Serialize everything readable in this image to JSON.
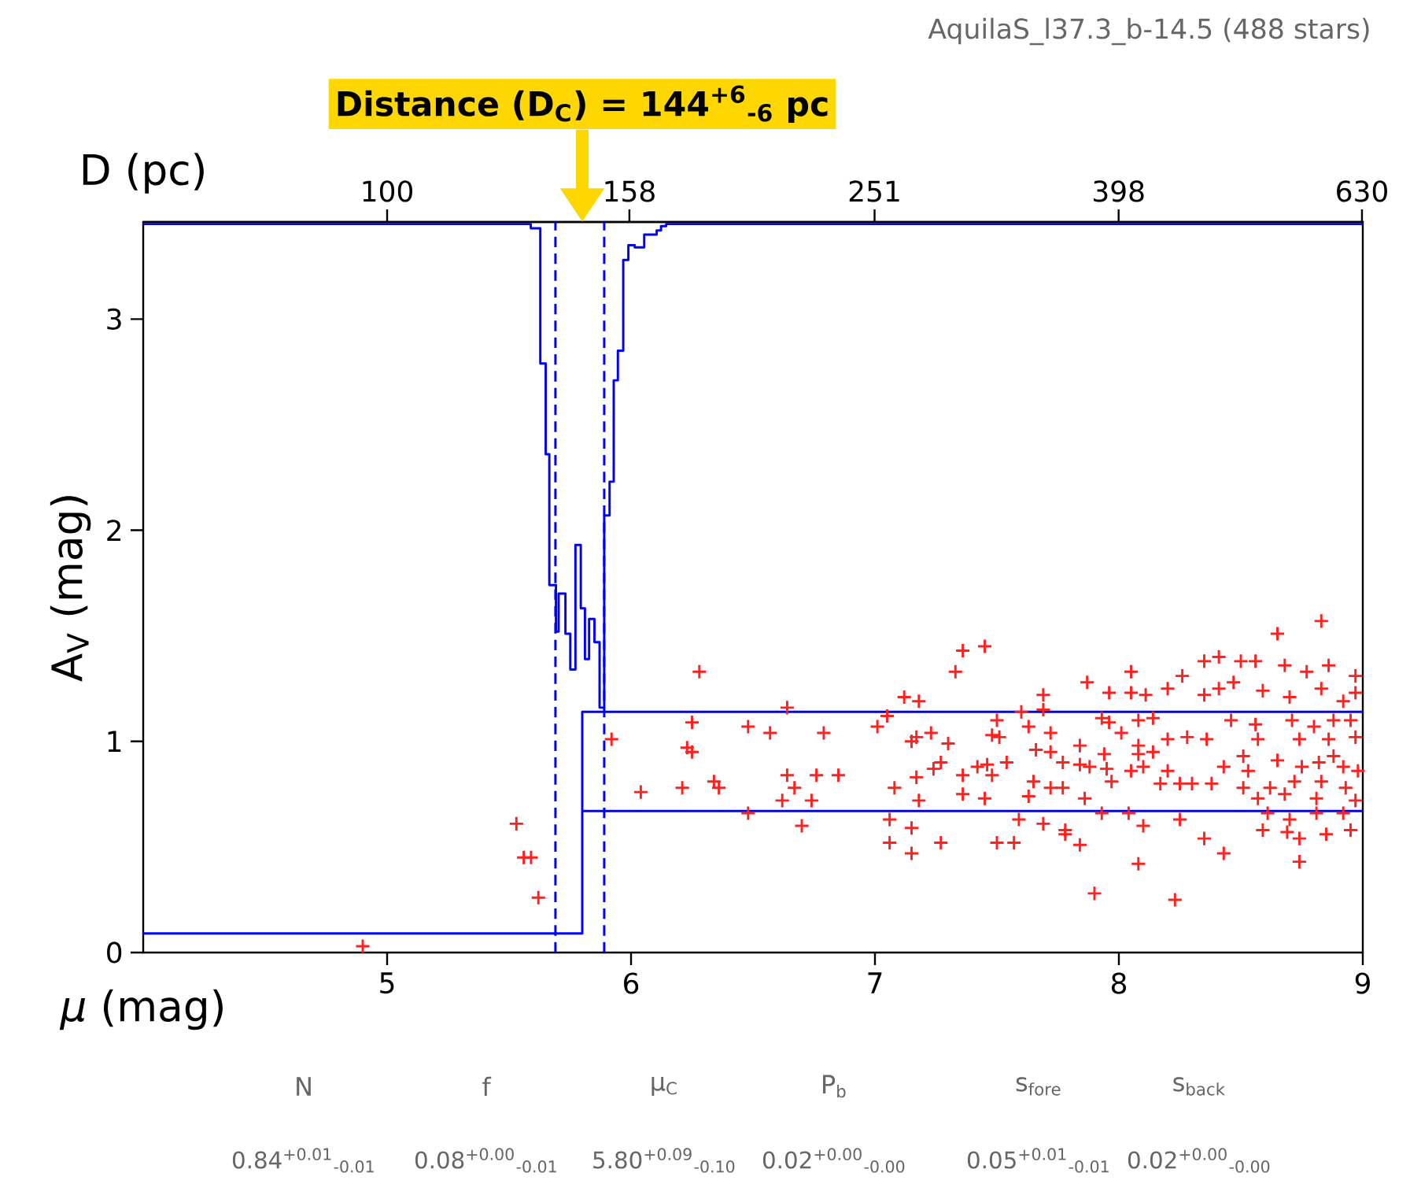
{
  "chart_data": {
    "type": "scatter",
    "title": "AquilaS_l37.3_b-14.5 (488 stars)",
    "xlabel": "*μ* (mag)",
    "ylabel": "A$_{V}$ (mag)",
    "x2label": "D (pc)",
    "xlim": [
      4,
      9
    ],
    "xticks": [
      5,
      6,
      7,
      8,
      9
    ],
    "ylim": [
      0,
      3.46
    ],
    "yticks": [
      0,
      1,
      2,
      3
    ],
    "x2lim": [
      63.1,
      631
    ],
    "x2ticks": [
      100,
      158,
      251,
      398,
      630
    ],
    "log": "x2",
    "marker": "cross",
    "grid": false,
    "series": [
      {
        "color": "#ff2020",
        "x": [
          4.9,
          5.53,
          5.56,
          5.59,
          5.62,
          5.92,
          6.04,
          6.28,
          6.25,
          6.25,
          6.23,
          6.21,
          6.34,
          6.36,
          6.48,
          6.48,
          6.57,
          6.64,
          6.64,
          6.62,
          6.67,
          6.7,
          6.76,
          6.79,
          6.85,
          6.74,
          7.01,
          7.05,
          7.36,
          7.45,
          7.33,
          7.12,
          7.18,
          7.06,
          7.15,
          7.06,
          7.15,
          7.27,
          7.5,
          7.57,
          7.08,
          7.18,
          7.17,
          7.36,
          7.36,
          7.24,
          7.27,
          7.15,
          7.17,
          7.23,
          7.3,
          7.42,
          7.46,
          7.54,
          7.48,
          7.45,
          7.48,
          7.51,
          7.5,
          7.6,
          7.69,
          7.69,
          7.63,
          7.72,
          7.66,
          7.72,
          7.77,
          7.84,
          7.72,
          7.77,
          7.65,
          7.63,
          7.59,
          7.69,
          7.78,
          7.78,
          7.84,
          7.9,
          7.87,
          7.96,
          8.05,
          8.05,
          8.11,
          8.2,
          8.26,
          7.93,
          7.96,
          8.01,
          8.08,
          8.14,
          8.2,
          8.28,
          8.36,
          8.08,
          8.08,
          8.14,
          7.84,
          7.88,
          7.94,
          7.95,
          7.97,
          8.05,
          8.1,
          8.2,
          7.86,
          7.93,
          8.04,
          8.08,
          8.1,
          8.23,
          8.17,
          8.25,
          8.3,
          8.38,
          8.25,
          8.35,
          8.43,
          8.35,
          8.41,
          8.5,
          8.56,
          8.68,
          8.77,
          8.86,
          8.65,
          8.83,
          8.97,
          8.41,
          8.47,
          8.59,
          8.7,
          8.83,
          8.92,
          8.97,
          8.35,
          8.46,
          8.56,
          8.71,
          8.8,
          8.88,
          8.95,
          8.57,
          8.74,
          8.86,
          8.97,
          8.43,
          8.53,
          8.65,
          8.75,
          8.82,
          8.92,
          8.98,
          8.51,
          8.62,
          8.72,
          8.83,
          8.93,
          8.57,
          8.68,
          8.81,
          8.97,
          8.61,
          8.7,
          8.81,
          8.92,
          8.59,
          8.69,
          8.85,
          8.95,
          8.74,
          8.74,
          8.51,
          8.88
        ],
        "values": [
          0.03,
          0.61,
          0.45,
          0.45,
          0.26,
          1.01,
          0.76,
          1.33,
          1.09,
          0.95,
          0.97,
          0.78,
          0.81,
          0.78,
          0.66,
          1.07,
          1.04,
          1.16,
          0.84,
          0.72,
          0.78,
          0.6,
          0.84,
          1.04,
          0.84,
          0.72,
          1.07,
          1.12,
          1.43,
          1.45,
          1.33,
          1.21,
          1.19,
          0.63,
          0.59,
          0.52,
          0.47,
          0.52,
          0.52,
          0.52,
          0.78,
          0.72,
          0.83,
          0.84,
          0.75,
          0.87,
          0.9,
          1.0,
          1.02,
          1.04,
          0.99,
          0.88,
          0.89,
          0.9,
          0.84,
          0.73,
          1.03,
          1.02,
          1.1,
          1.14,
          1.22,
          1.15,
          1.07,
          1.04,
          0.96,
          0.95,
          0.9,
          0.98,
          0.78,
          0.78,
          0.81,
          0.74,
          0.63,
          0.61,
          0.58,
          0.56,
          0.51,
          0.28,
          1.28,
          1.23,
          1.33,
          1.23,
          1.22,
          1.25,
          1.31,
          1.11,
          1.09,
          1.04,
          1.1,
          1.11,
          1.01,
          1.02,
          1.01,
          0.98,
          0.94,
          0.95,
          0.89,
          0.88,
          0.94,
          0.87,
          0.81,
          0.86,
          0.88,
          0.86,
          0.73,
          0.66,
          0.66,
          0.42,
          0.6,
          0.25,
          0.8,
          0.8,
          0.8,
          0.8,
          0.63,
          0.54,
          0.47,
          1.38,
          1.4,
          1.38,
          1.38,
          1.36,
          1.33,
          1.36,
          1.51,
          1.57,
          1.31,
          1.25,
          1.28,
          1.24,
          1.21,
          1.25,
          1.19,
          1.23,
          1.22,
          1.1,
          1.08,
          1.1,
          1.07,
          1.1,
          1.1,
          1.01,
          1.01,
          1.01,
          1.02,
          0.88,
          0.86,
          0.91,
          0.88,
          0.9,
          0.88,
          0.86,
          0.78,
          0.78,
          0.81,
          0.81,
          0.78,
          0.73,
          0.75,
          0.73,
          0.72,
          0.66,
          0.63,
          0.66,
          0.66,
          0.58,
          0.57,
          0.56,
          0.58,
          0.54,
          0.43,
          0.93,
          0.93
        ]
      },
      {
        "type": "step",
        "marker": "none",
        "color": "#0000ff",
        "x": [
          4,
          5.589,
          5.628,
          5.65,
          5.665,
          5.692,
          5.703,
          5.731,
          5.751,
          5.772,
          5.794,
          5.811,
          5.828,
          5.85,
          5.871,
          5.89,
          5.912,
          5.929,
          5.946,
          5.968,
          5.989,
          6.015,
          6.054,
          6.105,
          6.123,
          6.144,
          9
        ],
        "values": [
          3.45,
          3.43,
          2.79,
          2.36,
          1.74,
          1.52,
          1.7,
          1.51,
          1.34,
          1.93,
          1.63,
          1.39,
          1.58,
          1.47,
          1.16,
          2.07,
          2.23,
          2.71,
          2.85,
          3.28,
          3.35,
          3.34,
          3.4,
          3.42,
          3.44,
          3.45,
          3.45
        ]
      },
      {
        "type": "line",
        "marker": "none",
        "color": "#0000ff",
        "x": [
          4,
          5.8,
          5.8,
          9
        ],
        "values": [
          0.09,
          0.09,
          1.14,
          1.14
        ]
      },
      {
        "type": "line",
        "marker": "none",
        "color": "#0000ff",
        "x": [
          5.8,
          9
        ],
        "values": [
          0.67,
          0.67
        ]
      }
    ],
    "ref_lines": [
      {
        "axis": "x",
        "value": 5.69,
        "color": "#0000ff",
        "line_style": "dashed"
      },
      {
        "axis": "x",
        "value": 5.89,
        "color": "#0000ff",
        "line_style": "dashed"
      }
    ],
    "annotations": [
      "Distance (D$_{C}$) = 144$^{+6}$$_{-6}$ pc",
      "N",
      "f",
      "μ$_{C}$",
      "P$_{b}$",
      "s$_{fore}$",
      "s$_{back}$",
      "0.84$^{+0.01}$$_{-0.01}$",
      "0.08$^{+0.00}$$_{-0.01}$",
      "5.80$^{+0.09}$$_{-0.10}$",
      "0.02$^{+0.00}$$_{-0.00}$",
      "0.05$^{+0.01}$$_{-0.01}$",
      "0.02$^{+0.00}$$_{-0.00}$"
    ]
  }
}
